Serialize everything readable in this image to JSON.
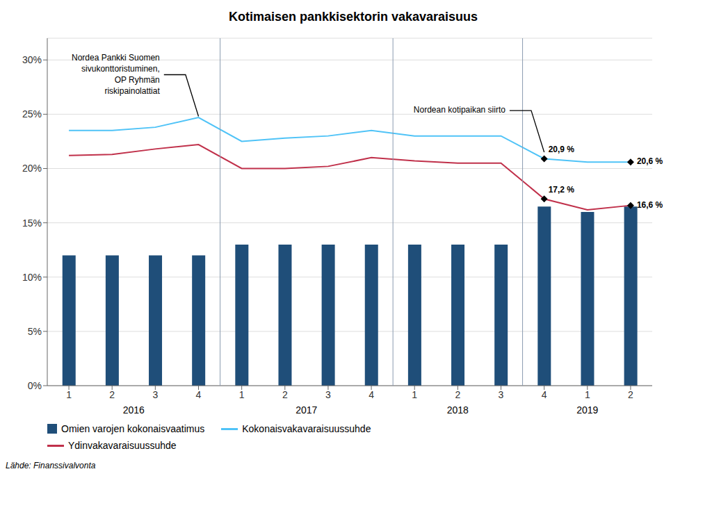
{
  "chart_data": {
    "type": "bar",
    "title": "Kotimaisen pankkisektorin vakavaraisuus",
    "categories": [
      "1",
      "2",
      "3",
      "4",
      "1",
      "2",
      "3",
      "4",
      "1",
      "2",
      "3",
      "4",
      "1",
      "2"
    ],
    "category_groups": [
      "2016",
      "2016",
      "2016",
      "2016",
      "2017",
      "2017",
      "2017",
      "2017",
      "2018",
      "2018",
      "2018",
      "2019",
      "2019",
      "2019"
    ],
    "series": [
      {
        "name": "Omien varojen kokonaisvaatimus",
        "type": "bar",
        "color": "#1F4E79",
        "values": [
          12.0,
          12.0,
          12.0,
          12.0,
          13.0,
          13.0,
          13.0,
          13.0,
          13.0,
          13.0,
          13.0,
          16.5,
          16.0,
          16.5
        ]
      },
      {
        "name": "Kokonaisvakavaraisuussuhde",
        "type": "line",
        "color": "#4FC3F7",
        "marker": "diamond",
        "values": [
          23.5,
          23.5,
          23.8,
          24.7,
          22.5,
          22.8,
          23.0,
          23.5,
          23.0,
          23.0,
          23.0,
          20.9,
          20.6,
          20.6
        ],
        "value_labels": [
          null,
          null,
          null,
          null,
          null,
          null,
          null,
          null,
          null,
          null,
          null,
          "20,9 %",
          null,
          "20,6 %"
        ]
      },
      {
        "name": "Ydinvakavaraisuussuhde",
        "type": "line",
        "color": "#C0304A",
        "marker": "diamond",
        "values": [
          21.2,
          21.3,
          21.8,
          22.2,
          20.0,
          20.0,
          20.2,
          21.0,
          20.7,
          20.5,
          20.5,
          17.2,
          16.2,
          16.6
        ],
        "value_labels": [
          null,
          null,
          null,
          null,
          null,
          null,
          null,
          null,
          null,
          null,
          null,
          "17,2 %",
          null,
          "16,6 %"
        ]
      }
    ],
    "ylim": [
      0,
      32
    ],
    "yticks": [
      {
        "value": 0,
        "label": "0%"
      },
      {
        "value": 5,
        "label": "5%"
      },
      {
        "value": 10,
        "label": "10%"
      },
      {
        "value": 15,
        "label": "15%"
      },
      {
        "value": 20,
        "label": "20%"
      },
      {
        "value": 25,
        "label": "25%"
      },
      {
        "value": 30,
        "label": "30%"
      }
    ],
    "grid": true,
    "legend": "bottom",
    "annotations": [
      {
        "text": "Nordea Pankki Suomen\nsivukonttoristuminen,\nOP Ryhmän\nriskipainolattiat",
        "x_index": 3,
        "y": 24.8
      },
      {
        "text": "Nordean kotipaikan siirto",
        "x_index": 11,
        "y": 21.5
      }
    ],
    "source": "Lähde: Finanssivalvonta"
  }
}
